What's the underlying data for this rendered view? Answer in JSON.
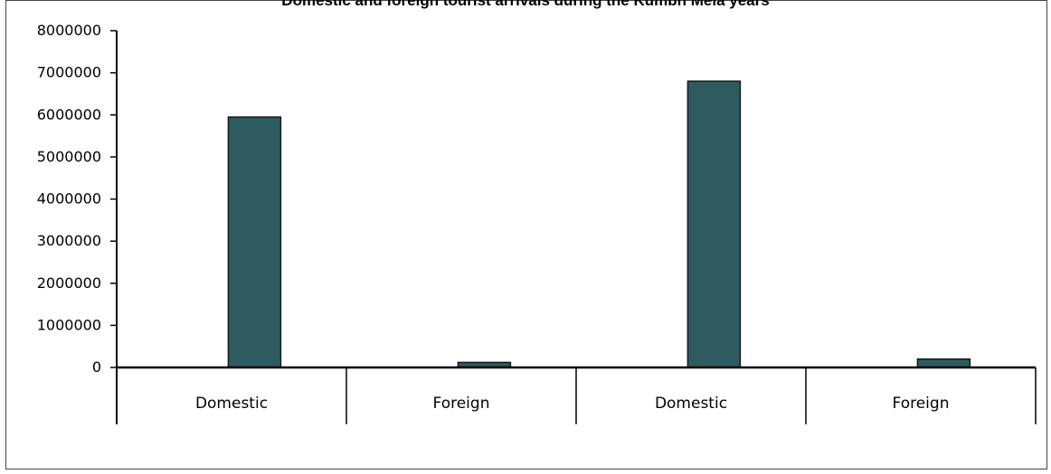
{
  "chart_data": {
    "type": "bar",
    "title": "Domestic and foreign tourist arrivals during the Kumbh Mela years",
    "categories": [
      "Domestic",
      "Foreign",
      "Domestic",
      "Foreign"
    ],
    "values": [
      5950000,
      120000,
      6800000,
      200000
    ],
    "ylim": [
      0,
      8000000
    ],
    "yticks": [
      0,
      1000000,
      2000000,
      3000000,
      4000000,
      5000000,
      6000000,
      7000000,
      8000000
    ],
    "xlabel": "",
    "ylabel": "",
    "grid": false,
    "legend": "none",
    "bar_color": "#2e5b60",
    "bar_edge_color": "#1a1a1a"
  }
}
